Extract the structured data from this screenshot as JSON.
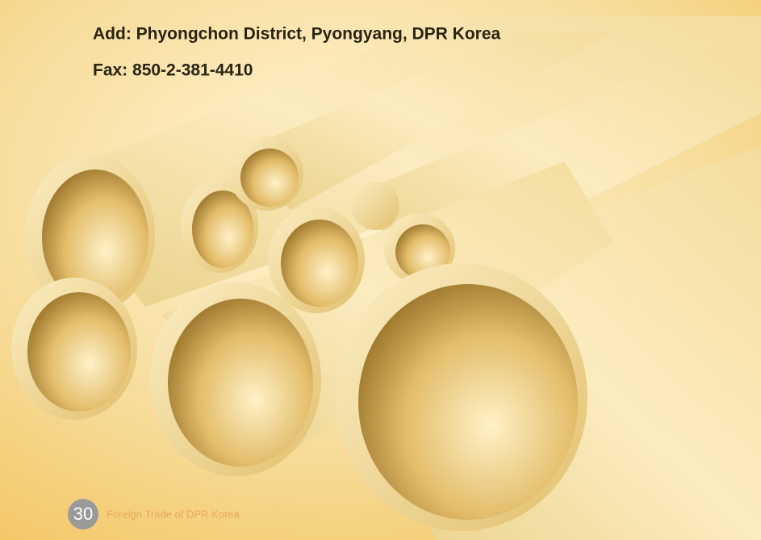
{
  "contact": {
    "address": "Add: Phyongchon District, Pyongyang, DPR Korea",
    "fax": "Fax: 850-2-381-4410"
  },
  "footer": {
    "page_number": "30",
    "publication": "Foreign Trade of DPR Korea"
  }
}
